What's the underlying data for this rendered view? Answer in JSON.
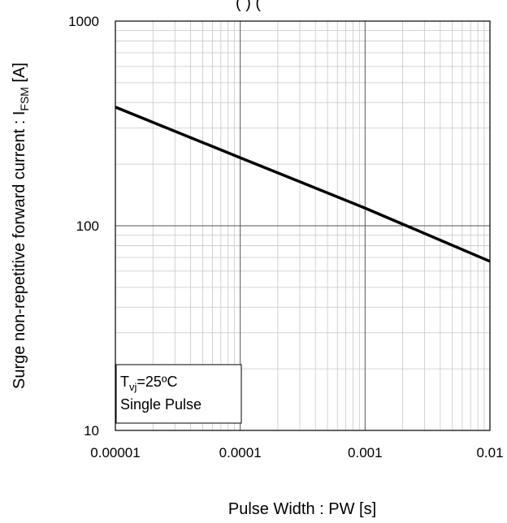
{
  "chart_data": {
    "type": "line",
    "title": "(                                        ) (",
    "xlabel": "Pulse Width : PW [s]",
    "ylabel": {
      "main": "Surge non-repetitive forward current : I",
      "subscript": "FSM",
      "unit": " [A]"
    },
    "x_scale": "log",
    "y_scale": "log",
    "xlim": [
      1e-05,
      0.01
    ],
    "ylim": [
      10,
      1000
    ],
    "x_ticks": [
      1e-05,
      0.0001,
      0.001,
      0.01
    ],
    "x_tick_labels": [
      "0.00001",
      "0.0001",
      "0.001",
      "0.01"
    ],
    "y_ticks": [
      10,
      100,
      1000
    ],
    "y_tick_labels": [
      "10",
      "100",
      "1000"
    ],
    "grid": true,
    "series": [
      {
        "color": "#000000",
        "x": [
          1e-05,
          0.0001,
          0.001,
          0.01
        ],
        "y": [
          380,
          215,
          122,
          67
        ]
      }
    ],
    "annotation": {
      "line1_main": "T",
      "line1_sub": "vj",
      "line1_rest": "=25ºC",
      "line2": "Single Pulse",
      "placement": "bottom-left"
    }
  }
}
